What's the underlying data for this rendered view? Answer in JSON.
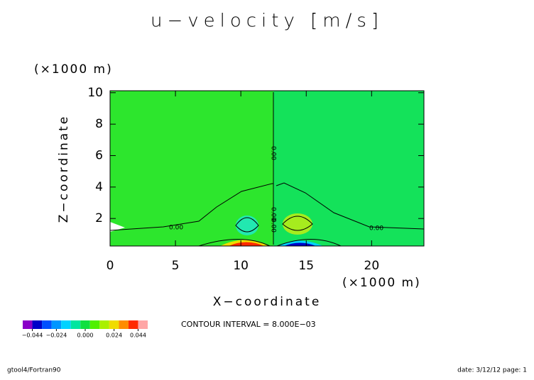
{
  "chart_data": {
    "type": "contour",
    "title": "u−velocity [m/s]",
    "x_label": "X−coordinate",
    "y_label": "Z−coordinate",
    "x_unit": "(×1000 m)",
    "y_unit": "(×1000 m)",
    "xlim": [
      0,
      24
    ],
    "xticks": [
      0,
      5,
      10,
      15,
      20
    ],
    "ylim": [
      0.25,
      10.125
    ],
    "yticks": [
      2,
      4,
      6,
      8,
      10
    ],
    "contour_labels": [
      "0.00",
      "0.00",
      "0.00",
      "0.00",
      "0.00"
    ],
    "colorbar": {
      "lim": [
        -0.052,
        0.052
      ],
      "colors": [
        "#8a00c8",
        "#0000c8",
        "#0050ff",
        "#0096ff",
        "#00d2ff",
        "#00e6a0",
        "#10e040",
        "#50f000",
        "#aaf000",
        "#f0dc00",
        "#ff8c00",
        "#ff2a00",
        "#ffa6a6"
      ],
      "ticks": [
        {
          "value": -0.044,
          "label": "−0.044"
        },
        {
          "value": -0.024,
          "label": "−0.024"
        },
        {
          "value": 0,
          "label": "0.000"
        },
        {
          "value": 0.024,
          "label": "0.024"
        },
        {
          "value": 0.044,
          "label": "0.044"
        }
      ]
    },
    "contour_interval": "CONTOUR INTERVAL = 8.000E−03",
    "footer_left": "gtool4/Fortran90",
    "footer_right": "date: 3/12/12 page: 1"
  }
}
